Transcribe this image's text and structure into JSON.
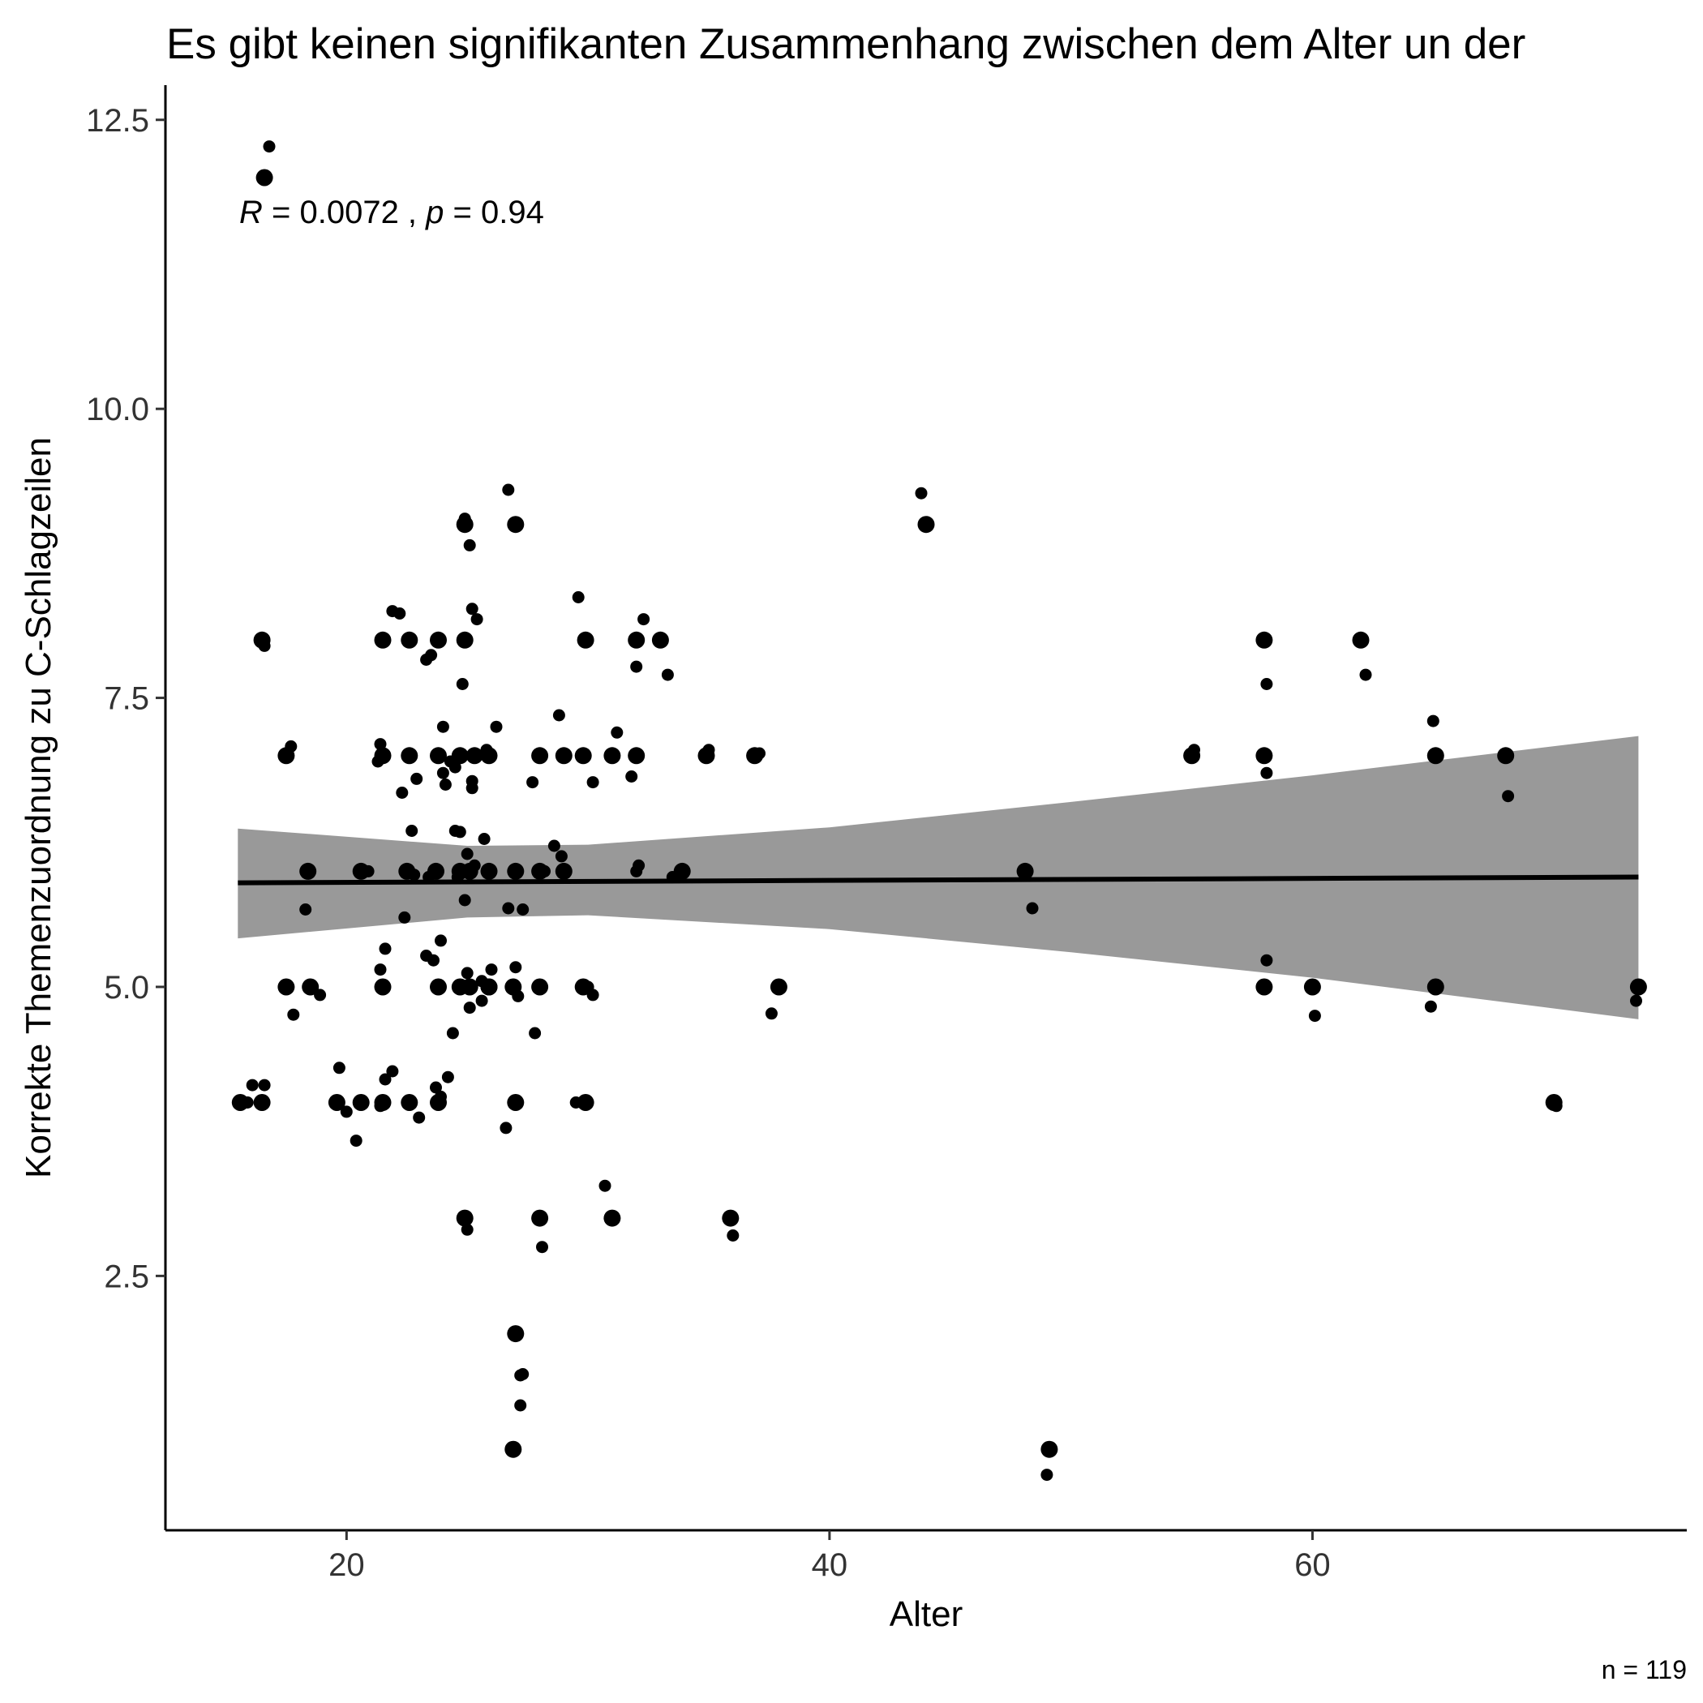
{
  "chart_data": {
    "type": "scatter",
    "title": "Es gibt keinen signifikanten Zusammenhang zwischen dem Alter un der",
    "xlabel": "Alter",
    "ylabel": "Korrekte Themenzuordnung zu C-Schlagzeilen",
    "caption": "n = 119",
    "annotation": {
      "r_symbol": "R",
      "r_text": " = 0.0072 , ",
      "p_symbol": "p",
      "p_text": " = 0.94"
    },
    "xlim": [
      12.5,
      75.5
    ],
    "ylim": [
      0.3,
      12.8
    ],
    "x_ticks": [
      20,
      40,
      60
    ],
    "x_tick_labels": [
      "20",
      "40",
      "60"
    ],
    "y_ticks": [
      2.5,
      5.0,
      7.5,
      10.0,
      12.5
    ],
    "y_tick_labels": [
      "2.5",
      "5.0",
      "7.5",
      "10.0",
      "12.5"
    ],
    "grid": false,
    "legend": "none",
    "point_color": "#000000",
    "band_color": "#999999",
    "trend": {
      "x": [
        15.5,
        73.5
      ],
      "y": [
        5.9,
        5.95
      ]
    },
    "confidence_band": {
      "x": [
        15.5,
        25,
        30,
        40,
        50,
        60,
        73.5
      ],
      "lower": [
        5.42,
        5.6,
        5.62,
        5.5,
        5.3,
        5.08,
        4.72
      ],
      "upper": [
        6.37,
        6.22,
        6.23,
        6.38,
        6.6,
        6.83,
        7.17
      ]
    },
    "points": [
      {
        "x": 15.6,
        "y": 4.0,
        "big": true
      },
      {
        "x": 15.9,
        "y": 4.0,
        "big": false
      },
      {
        "x": 16.1,
        "y": 4.15,
        "big": false
      },
      {
        "x": 16.6,
        "y": 12.0,
        "big": true
      },
      {
        "x": 16.8,
        "y": 12.27,
        "big": false
      },
      {
        "x": 16.5,
        "y": 8.0,
        "big": true
      },
      {
        "x": 16.6,
        "y": 7.95,
        "big": false
      },
      {
        "x": 16.5,
        "y": 4.0,
        "big": true
      },
      {
        "x": 16.6,
        "y": 4.15,
        "big": false
      },
      {
        "x": 17.5,
        "y": 7.0,
        "big": true
      },
      {
        "x": 17.7,
        "y": 7.08,
        "big": false
      },
      {
        "x": 17.5,
        "y": 5.0,
        "big": true
      },
      {
        "x": 17.8,
        "y": 4.76,
        "big": false
      },
      {
        "x": 18.4,
        "y": 6.0,
        "big": true
      },
      {
        "x": 18.3,
        "y": 5.67,
        "big": false
      },
      {
        "x": 18.5,
        "y": 5.0,
        "big": true
      },
      {
        "x": 18.9,
        "y": 4.93,
        "big": false
      },
      {
        "x": 19.6,
        "y": 4.0,
        "big": true
      },
      {
        "x": 19.7,
        "y": 4.3,
        "big": false
      },
      {
        "x": 20.0,
        "y": 3.92,
        "big": false
      },
      {
        "x": 20.6,
        "y": 6.0,
        "big": true
      },
      {
        "x": 20.9,
        "y": 6.0,
        "big": false
      },
      {
        "x": 20.6,
        "y": 4.0,
        "big": true
      },
      {
        "x": 20.4,
        "y": 3.67,
        "big": false
      },
      {
        "x": 21.5,
        "y": 8.0,
        "big": true
      },
      {
        "x": 21.5,
        "y": 7.0,
        "big": true
      },
      {
        "x": 21.4,
        "y": 7.1,
        "big": false
      },
      {
        "x": 21.3,
        "y": 6.95,
        "big": false
      },
      {
        "x": 21.5,
        "y": 5.0,
        "big": true
      },
      {
        "x": 21.6,
        "y": 5.33,
        "big": false
      },
      {
        "x": 21.4,
        "y": 5.15,
        "big": false
      },
      {
        "x": 21.5,
        "y": 4.0,
        "big": true
      },
      {
        "x": 21.6,
        "y": 4.2,
        "big": false
      },
      {
        "x": 21.9,
        "y": 4.27,
        "big": false
      },
      {
        "x": 21.4,
        "y": 3.97,
        "big": false
      },
      {
        "x": 21.9,
        "y": 8.25,
        "big": false
      },
      {
        "x": 22.2,
        "y": 8.23,
        "big": false
      },
      {
        "x": 22.3,
        "y": 6.68,
        "big": false
      },
      {
        "x": 22.4,
        "y": 5.6,
        "big": false
      },
      {
        "x": 22.5,
        "y": 6.0,
        "big": true
      },
      {
        "x": 22.8,
        "y": 5.97,
        "big": false
      },
      {
        "x": 22.6,
        "y": 7.0,
        "big": true
      },
      {
        "x": 22.6,
        "y": 8.0,
        "big": true
      },
      {
        "x": 22.7,
        "y": 6.35,
        "big": false
      },
      {
        "x": 22.9,
        "y": 6.8,
        "big": false
      },
      {
        "x": 22.6,
        "y": 4.0,
        "big": true
      },
      {
        "x": 23.0,
        "y": 3.87,
        "big": false
      },
      {
        "x": 23.3,
        "y": 7.83,
        "big": false
      },
      {
        "x": 23.5,
        "y": 7.87,
        "big": false
      },
      {
        "x": 23.4,
        "y": 5.95,
        "big": false
      },
      {
        "x": 23.3,
        "y": 5.27,
        "big": false
      },
      {
        "x": 23.6,
        "y": 5.23,
        "big": false
      },
      {
        "x": 23.7,
        "y": 4.13,
        "big": false
      },
      {
        "x": 23.9,
        "y": 4.05,
        "big": false
      },
      {
        "x": 23.7,
        "y": 6.0,
        "big": true
      },
      {
        "x": 23.8,
        "y": 7.0,
        "big": true
      },
      {
        "x": 23.8,
        "y": 8.0,
        "big": true
      },
      {
        "x": 23.8,
        "y": 5.0,
        "big": true
      },
      {
        "x": 23.8,
        "y": 4.0,
        "big": true
      },
      {
        "x": 23.9,
        "y": 5.4,
        "big": false
      },
      {
        "x": 24.0,
        "y": 7.25,
        "big": false
      },
      {
        "x": 24.0,
        "y": 6.85,
        "big": false
      },
      {
        "x": 24.1,
        "y": 6.75,
        "big": false
      },
      {
        "x": 24.2,
        "y": 4.22,
        "big": false
      },
      {
        "x": 24.5,
        "y": 6.9,
        "big": false
      },
      {
        "x": 24.3,
        "y": 6.95,
        "big": false
      },
      {
        "x": 24.4,
        "y": 4.6,
        "big": false
      },
      {
        "x": 24.5,
        "y": 6.35,
        "big": false
      },
      {
        "x": 24.6,
        "y": 5.95,
        "big": false
      },
      {
        "x": 24.7,
        "y": 6.0,
        "big": true
      },
      {
        "x": 24.7,
        "y": 7.0,
        "big": true
      },
      {
        "x": 24.7,
        "y": 5.0,
        "big": true
      },
      {
        "x": 24.7,
        "y": 6.34,
        "big": false
      },
      {
        "x": 24.8,
        "y": 7.62,
        "big": false
      },
      {
        "x": 24.9,
        "y": 9.0,
        "big": true
      },
      {
        "x": 24.9,
        "y": 9.05,
        "big": false
      },
      {
        "x": 24.9,
        "y": 8.0,
        "big": true
      },
      {
        "x": 24.9,
        "y": 5.75,
        "big": false
      },
      {
        "x": 24.9,
        "y": 3.0,
        "big": true
      },
      {
        "x": 25.0,
        "y": 6.15,
        "big": false
      },
      {
        "x": 25.0,
        "y": 5.12,
        "big": false
      },
      {
        "x": 25.1,
        "y": 6.0,
        "big": true
      },
      {
        "x": 25.1,
        "y": 8.82,
        "big": false
      },
      {
        "x": 25.0,
        "y": 2.9,
        "big": false
      },
      {
        "x": 25.1,
        "y": 4.82,
        "big": false
      },
      {
        "x": 25.2,
        "y": 6.78,
        "big": false
      },
      {
        "x": 25.2,
        "y": 6.72,
        "big": false
      },
      {
        "x": 25.2,
        "y": 8.27,
        "big": false
      },
      {
        "x": 25.1,
        "y": 5.0,
        "big": true
      },
      {
        "x": 25.3,
        "y": 7.0,
        "big": true
      },
      {
        "x": 25.3,
        "y": 6.05,
        "big": false
      },
      {
        "x": 25.4,
        "y": 8.18,
        "big": false
      },
      {
        "x": 25.6,
        "y": 5.05,
        "big": false
      },
      {
        "x": 25.6,
        "y": 4.88,
        "big": false
      },
      {
        "x": 25.8,
        "y": 7.05,
        "big": false
      },
      {
        "x": 25.7,
        "y": 6.28,
        "big": false
      },
      {
        "x": 25.9,
        "y": 7.0,
        "big": true
      },
      {
        "x": 25.9,
        "y": 6.0,
        "big": true
      },
      {
        "x": 25.9,
        "y": 5.0,
        "big": true
      },
      {
        "x": 25.9,
        "y": 5.0,
        "big": true
      },
      {
        "x": 26.0,
        "y": 5.15,
        "big": false
      },
      {
        "x": 26.2,
        "y": 7.25,
        "big": false
      },
      {
        "x": 26.7,
        "y": 9.3,
        "big": false
      },
      {
        "x": 26.6,
        "y": 3.78,
        "big": false
      },
      {
        "x": 26.7,
        "y": 5.68,
        "big": false
      },
      {
        "x": 27.0,
        "y": 6.0,
        "big": true
      },
      {
        "x": 26.9,
        "y": 5.0,
        "big": true
      },
      {
        "x": 27.0,
        "y": 4.0,
        "big": true
      },
      {
        "x": 27.0,
        "y": 9.0,
        "big": true
      },
      {
        "x": 27.0,
        "y": 2.0,
        "big": true
      },
      {
        "x": 26.9,
        "y": 1.0,
        "big": true
      },
      {
        "x": 27.0,
        "y": 5.17,
        "big": false
      },
      {
        "x": 27.1,
        "y": 4.92,
        "big": false
      },
      {
        "x": 27.2,
        "y": 1.64,
        "big": false
      },
      {
        "x": 27.2,
        "y": 1.38,
        "big": false
      },
      {
        "x": 27.3,
        "y": 5.67,
        "big": false
      },
      {
        "x": 27.3,
        "y": 1.65,
        "big": false
      },
      {
        "x": 27.7,
        "y": 6.77,
        "big": false
      },
      {
        "x": 27.8,
        "y": 4.6,
        "big": false
      },
      {
        "x": 28.0,
        "y": 7.0,
        "big": true
      },
      {
        "x": 28.0,
        "y": 6.0,
        "big": true
      },
      {
        "x": 28.0,
        "y": 5.0,
        "big": true
      },
      {
        "x": 28.0,
        "y": 3.0,
        "big": true
      },
      {
        "x": 28.2,
        "y": 6.0,
        "big": false
      },
      {
        "x": 28.1,
        "y": 2.75,
        "big": false
      },
      {
        "x": 28.6,
        "y": 6.22,
        "big": false
      },
      {
        "x": 28.8,
        "y": 7.35,
        "big": false
      },
      {
        "x": 28.9,
        "y": 6.13,
        "big": false
      },
      {
        "x": 29.0,
        "y": 7.0,
        "big": true
      },
      {
        "x": 29.0,
        "y": 6.0,
        "big": true
      },
      {
        "x": 29.5,
        "y": 4.0,
        "big": false
      },
      {
        "x": 29.6,
        "y": 8.37,
        "big": false
      },
      {
        "x": 29.9,
        "y": 8.0,
        "big": true
      },
      {
        "x": 29.8,
        "y": 7.0,
        "big": true
      },
      {
        "x": 29.8,
        "y": 5.0,
        "big": true
      },
      {
        "x": 29.9,
        "y": 4.0,
        "big": true
      },
      {
        "x": 30.0,
        "y": 5.0,
        "big": false
      },
      {
        "x": 30.2,
        "y": 6.77,
        "big": false
      },
      {
        "x": 30.2,
        "y": 4.93,
        "big": false
      },
      {
        "x": 30.7,
        "y": 3.28,
        "big": false
      },
      {
        "x": 31.0,
        "y": 7.0,
        "big": true
      },
      {
        "x": 31.0,
        "y": 3.0,
        "big": true
      },
      {
        "x": 31.2,
        "y": 7.2,
        "big": false
      },
      {
        "x": 31.8,
        "y": 6.82,
        "big": false
      },
      {
        "x": 32.0,
        "y": 7.77,
        "big": false
      },
      {
        "x": 32.0,
        "y": 8.0,
        "big": true
      },
      {
        "x": 32.0,
        "y": 7.0,
        "big": true
      },
      {
        "x": 32.0,
        "y": 6.0,
        "big": false
      },
      {
        "x": 32.1,
        "y": 6.05,
        "big": false
      },
      {
        "x": 32.3,
        "y": 8.18,
        "big": false
      },
      {
        "x": 33.0,
        "y": 8.0,
        "big": true
      },
      {
        "x": 33.3,
        "y": 7.7,
        "big": false
      },
      {
        "x": 33.5,
        "y": 5.95,
        "big": false
      },
      {
        "x": 33.9,
        "y": 6.0,
        "big": true
      },
      {
        "x": 34.9,
        "y": 7.0,
        "big": true
      },
      {
        "x": 35.0,
        "y": 7.05,
        "big": false
      },
      {
        "x": 35.9,
        "y": 3.0,
        "big": true
      },
      {
        "x": 36.0,
        "y": 2.85,
        "big": false
      },
      {
        "x": 36.9,
        "y": 7.0,
        "big": true
      },
      {
        "x": 37.1,
        "y": 7.02,
        "big": false
      },
      {
        "x": 37.6,
        "y": 4.77,
        "big": false
      },
      {
        "x": 37.9,
        "y": 5.0,
        "big": true
      },
      {
        "x": 43.8,
        "y": 9.27,
        "big": false
      },
      {
        "x": 44.0,
        "y": 9.0,
        "big": true
      },
      {
        "x": 48.1,
        "y": 6.0,
        "big": true
      },
      {
        "x": 48.4,
        "y": 5.68,
        "big": false
      },
      {
        "x": 49.0,
        "y": 0.78,
        "big": false
      },
      {
        "x": 49.1,
        "y": 1.0,
        "big": true
      },
      {
        "x": 55.0,
        "y": 7.0,
        "big": true
      },
      {
        "x": 55.1,
        "y": 7.05,
        "big": false
      },
      {
        "x": 58.0,
        "y": 8.0,
        "big": true
      },
      {
        "x": 58.1,
        "y": 7.62,
        "big": false
      },
      {
        "x": 58.0,
        "y": 7.0,
        "big": true
      },
      {
        "x": 58.1,
        "y": 6.85,
        "big": false
      },
      {
        "x": 58.1,
        "y": 5.23,
        "big": false
      },
      {
        "x": 58.0,
        "y": 5.0,
        "big": true
      },
      {
        "x": 60.0,
        "y": 5.0,
        "big": true
      },
      {
        "x": 60.1,
        "y": 4.75,
        "big": false
      },
      {
        "x": 62.0,
        "y": 8.0,
        "big": true
      },
      {
        "x": 62.2,
        "y": 7.7,
        "big": false
      },
      {
        "x": 64.9,
        "y": 4.83,
        "big": false
      },
      {
        "x": 65.0,
        "y": 7.3,
        "big": false
      },
      {
        "x": 65.1,
        "y": 7.0,
        "big": true
      },
      {
        "x": 65.1,
        "y": 5.0,
        "big": true
      },
      {
        "x": 68.0,
        "y": 7.0,
        "big": true
      },
      {
        "x": 68.1,
        "y": 6.65,
        "big": false
      },
      {
        "x": 70.0,
        "y": 4.0,
        "big": true
      },
      {
        "x": 70.1,
        "y": 3.97,
        "big": false
      },
      {
        "x": 73.5,
        "y": 5.0,
        "big": true
      },
      {
        "x": 73.4,
        "y": 4.88,
        "big": false
      }
    ]
  }
}
